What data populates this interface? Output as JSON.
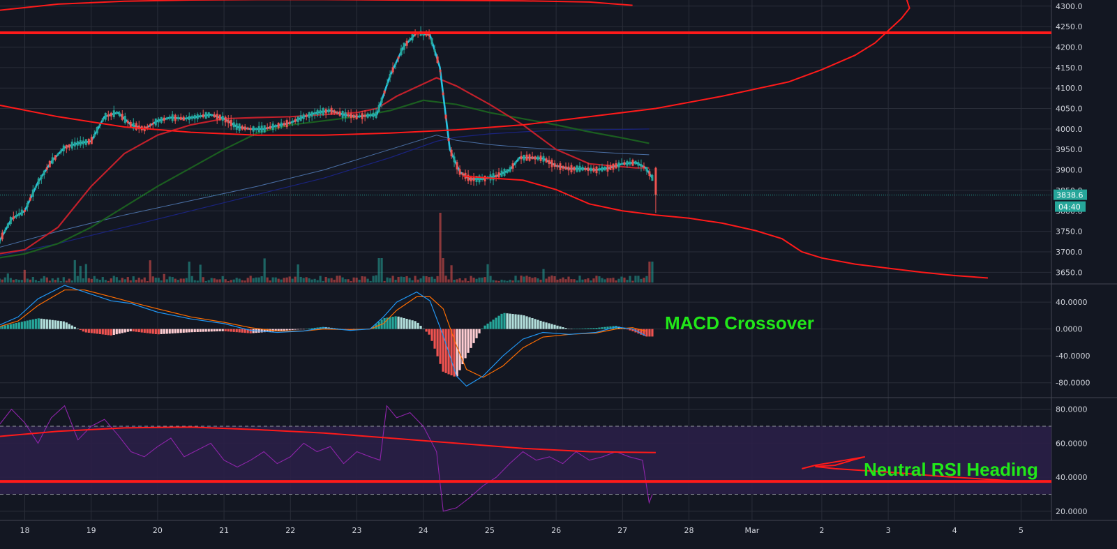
{
  "chart_data": {
    "type": "candlestick",
    "colors": {
      "background": "#131722",
      "grid": "#2a2e39",
      "up": "#26a69a",
      "down": "#ef5350",
      "ema_fast": "#27c2e0",
      "ma_red": "#c2202b",
      "ma_green": "#1b5e20",
      "ma_blue": "#1a237e",
      "ma_lightblue": "#4a6fa5",
      "drawing": "#ff1a1a",
      "macd": "#2196f3",
      "signal": "#ff6d00",
      "rsi": "#8e24aa",
      "rsi_band": "#2a1f47",
      "annotation": "#21e819"
    },
    "price_panel": {
      "ylim": [
        3625,
        4315
      ],
      "ticks": [
        3650,
        3700,
        3750,
        3800,
        3850,
        3900,
        3950,
        4000,
        4050,
        4100,
        4150,
        4200,
        4250,
        4300
      ],
      "current_price": "3838.6",
      "countdown": "04:40",
      "horizontal_level": 4235,
      "ma_red": [
        [
          17.6,
          3695
        ],
        [
          18,
          3705
        ],
        [
          18.5,
          3760
        ],
        [
          19,
          3860
        ],
        [
          19.5,
          3940
        ],
        [
          20,
          3985
        ],
        [
          20.5,
          4010
        ],
        [
          21,
          4025
        ],
        [
          21.5,
          4028
        ],
        [
          22,
          4030
        ],
        [
          22.5,
          4035
        ],
        [
          23,
          4040
        ],
        [
          23.3,
          4050
        ],
        [
          23.6,
          4080
        ],
        [
          24.2,
          4125
        ],
        [
          24.5,
          4105
        ],
        [
          25,
          4060
        ],
        [
          25.5,
          4010
        ],
        [
          26,
          3950
        ],
        [
          26.5,
          3915
        ],
        [
          27.2,
          3905
        ],
        [
          27.4,
          3905
        ]
      ],
      "ma_green": [
        [
          17.6,
          3685
        ],
        [
          18,
          3695
        ],
        [
          18.5,
          3720
        ],
        [
          19,
          3760
        ],
        [
          19.5,
          3810
        ],
        [
          20,
          3860
        ],
        [
          20.5,
          3905
        ],
        [
          21,
          3950
        ],
        [
          21.5,
          3990
        ],
        [
          22,
          4010
        ],
        [
          22.5,
          4020
        ],
        [
          23,
          4030
        ],
        [
          23.5,
          4045
        ],
        [
          24,
          4070
        ],
        [
          24.5,
          4060
        ],
        [
          25,
          4040
        ],
        [
          25.5,
          4025
        ],
        [
          26,
          4010
        ],
        [
          26.5,
          3993
        ],
        [
          27,
          3978
        ],
        [
          27.4,
          3965
        ]
      ],
      "ma_blue": [
        [
          17.6,
          3690
        ],
        [
          18.5,
          3720
        ],
        [
          19.5,
          3760
        ],
        [
          20.5,
          3800
        ],
        [
          21.5,
          3840
        ],
        [
          22.5,
          3880
        ],
        [
          23.5,
          3930
        ],
        [
          24.2,
          3970
        ],
        [
          24.5,
          3980
        ],
        [
          25,
          3988
        ],
        [
          25.5,
          3993
        ],
        [
          26,
          3997
        ],
        [
          26.5,
          3998
        ],
        [
          27,
          3999
        ],
        [
          27.4,
          4000
        ]
      ],
      "ma_lightblue": [
        [
          17.6,
          3710
        ],
        [
          18.5,
          3750
        ],
        [
          19.5,
          3790
        ],
        [
          20.5,
          3825
        ],
        [
          21.5,
          3860
        ],
        [
          22.5,
          3900
        ],
        [
          23.5,
          3950
        ],
        [
          24.2,
          3985
        ],
        [
          24.5,
          3972
        ],
        [
          25,
          3962
        ],
        [
          25.5,
          3955
        ],
        [
          26,
          3950
        ],
        [
          26.5,
          3945
        ],
        [
          27,
          3940
        ],
        [
          27.4,
          3937
        ]
      ],
      "arc_top": [
        [
          17.62,
          4290
        ],
        [
          18.5,
          4305
        ],
        [
          19.5,
          4312
        ],
        [
          20.5,
          4315
        ],
        [
          21.5,
          4316
        ],
        [
          22.5,
          4316
        ],
        [
          23.5,
          4315
        ],
        [
          24.5,
          4314
        ],
        [
          25.5,
          4313
        ],
        [
          26.5,
          4310
        ],
        [
          27.15,
          4302
        ]
      ],
      "curve_low": [
        [
          17.62,
          4058
        ],
        [
          18.5,
          4030
        ],
        [
          19.5,
          4005
        ],
        [
          20.5,
          3992
        ],
        [
          21.5,
          3985
        ],
        [
          22.5,
          3985
        ],
        [
          23.5,
          3990
        ],
        [
          24.5,
          3998
        ],
        [
          25.5,
          4010
        ],
        [
          26.5,
          4030
        ],
        [
          27.5,
          4050
        ],
        [
          28.5,
          4080
        ],
        [
          29.5,
          4115
        ],
        [
          30,
          4145
        ],
        [
          30.5,
          4180
        ],
        [
          30.8,
          4210
        ],
        [
          31.0,
          4240
        ],
        [
          31.2,
          4270
        ],
        [
          31.32,
          4295
        ],
        [
          31.28,
          4315
        ]
      ],
      "curve_down": [
        [
          24.6,
          3885
        ],
        [
          25,
          3880
        ],
        [
          25.5,
          3875
        ],
        [
          26,
          3852
        ],
        [
          26.5,
          3817
        ],
        [
          27,
          3800
        ],
        [
          27.5,
          3790
        ],
        [
          28,
          3782
        ],
        [
          28.5,
          3770
        ],
        [
          29,
          3752
        ],
        [
          29.4,
          3732
        ],
        [
          29.7,
          3700
        ],
        [
          30,
          3685
        ],
        [
          30.5,
          3670
        ],
        [
          31,
          3660
        ],
        [
          31.5,
          3650
        ],
        [
          32,
          3642
        ],
        [
          32.5,
          3636
        ]
      ]
    },
    "macd_panel": {
      "ylim": [
        -100,
        65
      ],
      "ticks": [
        -80,
        -40,
        0,
        40
      ],
      "label": "MACD Crossover",
      "macd": [
        [
          17.6,
          5
        ],
        [
          17.9,
          18
        ],
        [
          18.2,
          45
        ],
        [
          18.6,
          65
        ],
        [
          18.9,
          55
        ],
        [
          19.3,
          42
        ],
        [
          19.6,
          38
        ],
        [
          20,
          25
        ],
        [
          20.5,
          15
        ],
        [
          21,
          8
        ],
        [
          21.4,
          -2
        ],
        [
          21.8,
          -5
        ],
        [
          22.2,
          -3
        ],
        [
          22.5,
          2
        ],
        [
          22.9,
          -2
        ],
        [
          23.2,
          0
        ],
        [
          23.4,
          18
        ],
        [
          23.6,
          40
        ],
        [
          23.9,
          55
        ],
        [
          24.1,
          42
        ],
        [
          24.3,
          -10
        ],
        [
          24.5,
          -70
        ],
        [
          24.65,
          -85
        ],
        [
          24.9,
          -70
        ],
        [
          25.2,
          -40
        ],
        [
          25.5,
          -15
        ],
        [
          25.8,
          -5
        ],
        [
          26.2,
          -8
        ],
        [
          26.6,
          -5
        ],
        [
          26.9,
          3
        ],
        [
          27.15,
          0
        ],
        [
          27.35,
          -10
        ]
      ],
      "signal": [
        [
          17.6,
          3
        ],
        [
          17.9,
          12
        ],
        [
          18.2,
          35
        ],
        [
          18.6,
          58
        ],
        [
          18.9,
          58
        ],
        [
          19.3,
          48
        ],
        [
          19.6,
          40
        ],
        [
          20,
          30
        ],
        [
          20.5,
          18
        ],
        [
          21,
          10
        ],
        [
          21.4,
          2
        ],
        [
          21.8,
          -3
        ],
        [
          22.2,
          -3
        ],
        [
          22.5,
          0
        ],
        [
          22.9,
          -1
        ],
        [
          23.2,
          0
        ],
        [
          23.4,
          8
        ],
        [
          23.6,
          28
        ],
        [
          23.9,
          48
        ],
        [
          24.1,
          48
        ],
        [
          24.3,
          30
        ],
        [
          24.5,
          -25
        ],
        [
          24.65,
          -60
        ],
        [
          24.9,
          -72
        ],
        [
          25.2,
          -55
        ],
        [
          25.5,
          -28
        ],
        [
          25.8,
          -12
        ],
        [
          26.2,
          -8
        ],
        [
          26.6,
          -6
        ],
        [
          26.9,
          0
        ],
        [
          27.15,
          2
        ],
        [
          27.35,
          -3
        ]
      ]
    },
    "rsi_panel": {
      "ylim": [
        15,
        86
      ],
      "ticks": [
        20,
        40,
        60,
        80
      ],
      "band": [
        30,
        70
      ],
      "label": "Neutral RSI Heading",
      "horizontal_level": 37.5,
      "rsi": [
        [
          17.6,
          70
        ],
        [
          17.8,
          80
        ],
        [
          18,
          72
        ],
        [
          18.2,
          60
        ],
        [
          18.4,
          75
        ],
        [
          18.6,
          82
        ],
        [
          18.8,
          62
        ],
        [
          19,
          70
        ],
        [
          19.2,
          74
        ],
        [
          19.4,
          65
        ],
        [
          19.6,
          55
        ],
        [
          19.8,
          52
        ],
        [
          20,
          58
        ],
        [
          20.2,
          63
        ],
        [
          20.4,
          52
        ],
        [
          20.6,
          56
        ],
        [
          20.8,
          60
        ],
        [
          21,
          50
        ],
        [
          21.2,
          46
        ],
        [
          21.4,
          50
        ],
        [
          21.6,
          55
        ],
        [
          21.8,
          48
        ],
        [
          22,
          52
        ],
        [
          22.2,
          60
        ],
        [
          22.4,
          55
        ],
        [
          22.6,
          58
        ],
        [
          22.8,
          48
        ],
        [
          23,
          55
        ],
        [
          23.2,
          52
        ],
        [
          23.35,
          50
        ],
        [
          23.45,
          82
        ],
        [
          23.6,
          75
        ],
        [
          23.8,
          78
        ],
        [
          24,
          70
        ],
        [
          24.2,
          55
        ],
        [
          24.3,
          20
        ],
        [
          24.5,
          22
        ],
        [
          24.7,
          28
        ],
        [
          24.9,
          35
        ],
        [
          25.1,
          40
        ],
        [
          25.3,
          48
        ],
        [
          25.5,
          55
        ],
        [
          25.7,
          50
        ],
        [
          25.9,
          52
        ],
        [
          26.1,
          48
        ],
        [
          26.3,
          55
        ],
        [
          26.5,
          50
        ],
        [
          26.7,
          52
        ],
        [
          26.9,
          55
        ],
        [
          27.1,
          52
        ],
        [
          27.3,
          50
        ],
        [
          27.4,
          25
        ],
        [
          27.45,
          30
        ]
      ],
      "trend_curve": [
        [
          17.62,
          64
        ],
        [
          18.5,
          67
        ],
        [
          19.5,
          69
        ],
        [
          20.5,
          69.5
        ],
        [
          21.5,
          68
        ],
        [
          22.5,
          66
        ],
        [
          23.5,
          63
        ],
        [
          24.5,
          60
        ],
        [
          25.5,
          57
        ],
        [
          26.5,
          55
        ],
        [
          27.5,
          54.5
        ]
      ],
      "loop": [
        [
          29.7,
          45
        ],
        [
          29.9,
          47
        ],
        [
          30.2,
          49
        ],
        [
          30.5,
          51
        ],
        [
          30.65,
          52
        ],
        [
          30.5,
          50.5
        ],
        [
          30.2,
          47
        ],
        [
          29.9,
          46.3
        ],
        [
          30.2,
          45
        ],
        [
          31,
          43
        ],
        [
          31.8,
          40.5
        ],
        [
          32.6,
          38.5
        ],
        [
          33,
          37.5
        ]
      ]
    },
    "x_axis": {
      "ticks": [
        {
          "day": 18,
          "label": "18"
        },
        {
          "day": 19,
          "label": "19"
        },
        {
          "day": 20,
          "label": "20"
        },
        {
          "day": 21,
          "label": "21"
        },
        {
          "day": 22,
          "label": "22"
        },
        {
          "day": 23,
          "label": "23"
        },
        {
          "day": 24,
          "label": "24"
        },
        {
          "day": 25,
          "label": "25"
        },
        {
          "day": 26,
          "label": "26"
        },
        {
          "day": 27,
          "label": "27"
        },
        {
          "day": 28,
          "label": "28"
        },
        {
          "day": 28.95,
          "label": "Mar"
        },
        {
          "day": 30,
          "label": "2"
        },
        {
          "day": 31,
          "label": "3"
        },
        {
          "day": 32,
          "label": "4"
        },
        {
          "day": 33,
          "label": "5"
        }
      ]
    }
  }
}
